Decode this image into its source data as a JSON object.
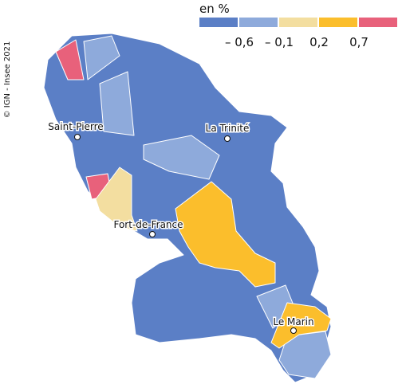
{
  "source": "© IGN - Insee 2021",
  "legend": {
    "title": "en %",
    "colors": [
      "#5b7fc6",
      "#8eaadb",
      "#f3dea0",
      "#fbbe2c",
      "#e8617b"
    ],
    "breaks": [
      "– 0,6",
      "– 0,1",
      "0,2",
      "0,7"
    ]
  },
  "places": [
    "Saint-Pierre",
    "La Trinité",
    "Fort-de-France",
    "Le Marin"
  ]
}
